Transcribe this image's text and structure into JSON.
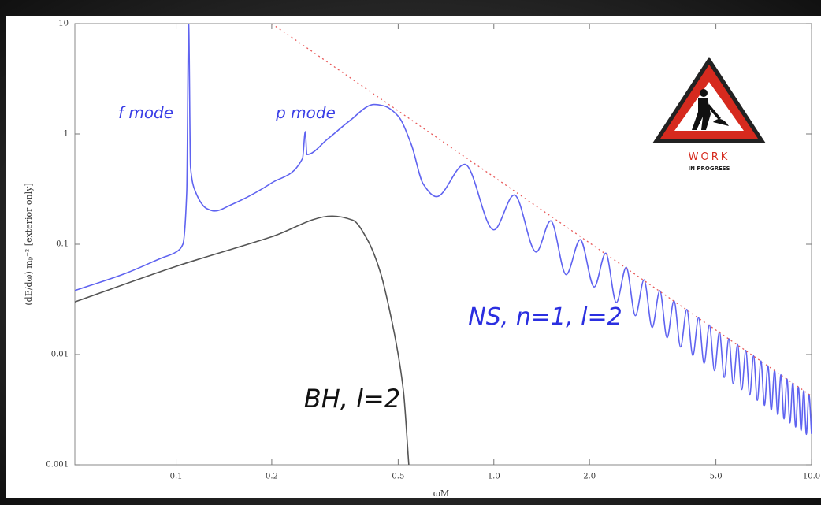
{
  "chart_data": {
    "type": "line",
    "xscale": "log",
    "yscale": "log",
    "grid": false,
    "xlabel": "ωM",
    "ylabel": "(dE/dω) mₚ⁻² [exterior only]",
    "xlim": [
      0.048,
      10
    ],
    "ylim": [
      0.001,
      10
    ],
    "xticks": [
      0.1,
      0.2,
      0.5,
      {
        "value": 1,
        "label": "1.0"
      },
      {
        "value": 2,
        "label": "2.0"
      },
      {
        "value": 5,
        "label": "5.0"
      },
      {
        "value": 10,
        "label": "10.0"
      }
    ],
    "yticks": [
      0.001,
      0.01,
      0.1,
      1,
      10
    ],
    "series": [
      {
        "color": "#5f63f0",
        "linestyle": "solid",
        "x": [
          0.048,
          0.07,
          0.09,
          0.1,
          0.105,
          0.108,
          0.1095,
          0.111,
          0.115,
          0.125,
          0.132,
          0.15,
          0.2,
          0.25,
          0.255,
          0.258,
          0.3,
          0.35,
          0.42,
          0.45,
          0.5,
          0.55,
          0.6,
          0.66,
          0.81,
          1.0,
          1.16,
          1.36,
          1.51,
          1.69,
          1.87,
          2.07,
          2.25,
          2.43,
          2.61,
          2.79,
          2.97,
          3.15,
          3.33,
          3.51,
          3.69,
          3.87,
          4.05,
          4.23,
          4.41,
          4.59,
          4.77,
          4.95,
          5.13,
          5.31,
          5.49,
          5.67,
          5.85,
          6.03,
          6.21,
          6.39,
          6.57,
          6.75,
          6.93,
          7.11,
          7.29,
          7.47,
          7.65,
          7.83,
          8.01,
          8.19,
          8.37,
          8.55,
          8.73,
          8.91,
          9.09,
          9.27,
          9.45,
          9.63,
          9.81,
          10
        ],
        "values": [
          0.038,
          0.055,
          0.075,
          0.085,
          0.1,
          0.3,
          10,
          0.5,
          0.3,
          0.21,
          0.2,
          0.23,
          0.36,
          0.6,
          1.05,
          0.65,
          0.9,
          1.3,
          1.85,
          1.8,
          1.45,
          0.8,
          0.35,
          0.27,
          0.53,
          0.135,
          0.28,
          0.085,
          0.163,
          0.053,
          0.11,
          0.041,
          0.083,
          0.0296,
          0.0617,
          0.0225,
          0.0476,
          0.0176,
          0.0379,
          0.0142,
          0.0308,
          0.0117,
          0.0256,
          0.0098,
          0.0216,
          0.0083,
          0.0185,
          0.00714,
          0.016,
          0.0062,
          0.0139,
          0.00544,
          0.0123,
          0.00481,
          0.0109,
          0.00429,
          0.00973,
          0.00384,
          0.00875,
          0.00346,
          0.0079,
          0.00314,
          0.00718,
          0.00285,
          0.00655,
          0.00261,
          0.006,
          0.0024,
          0.00551,
          0.0022,
          0.00508,
          0.00204,
          0.0047,
          0.00189,
          0.00436,
          0.0019
        ]
      },
      {
        "color": "#555555",
        "linestyle": "solid",
        "x": [
          0.048,
          0.1,
          0.2,
          0.31,
          0.36,
          0.4,
          0.44,
          0.47,
          0.5,
          0.52,
          0.54
        ],
        "values": [
          0.03,
          0.063,
          0.117,
          0.18,
          0.165,
          0.11,
          0.055,
          0.025,
          0.01,
          0.0045,
          0.001
        ]
      },
      {
        "color": "#e85a5a",
        "linestyle": "dotted",
        "x": [
          0.2,
          10
        ],
        "values": [
          10,
          0.0042
        ]
      }
    ],
    "annotations": [
      {
        "text": "f mode",
        "color": "#3a3ee6"
      },
      {
        "text": "p mode",
        "color": "#3a3ee6"
      },
      {
        "text": "NS, n=1, l=2",
        "color": "#2b2fe0"
      },
      {
        "text": "BH, l=2",
        "color": "#111111"
      }
    ],
    "sign": {
      "top": "WORK",
      "bottom": "IN PROGRESS"
    }
  }
}
